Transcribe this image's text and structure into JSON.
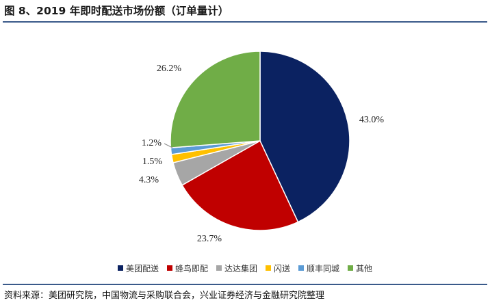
{
  "header": {
    "title": "图 8、2019 年即时配送市场份额（订单量计）"
  },
  "footer": {
    "source": "资料来源：美团研究院，中国物流与采购联合会，兴业证券经济与金融研究院整理"
  },
  "chart_data": {
    "type": "pie",
    "title": "",
    "start_angle_deg": 0,
    "direction": "clockwise",
    "legend_position": "bottom",
    "slices": [
      {
        "name": "美团配送",
        "value": 43.0,
        "label": "43.0%",
        "color": "#0b2261"
      },
      {
        "name": "蜂鸟即配",
        "value": 23.7,
        "label": "23.7%",
        "color": "#c00000"
      },
      {
        "name": "达达集团",
        "value": 4.3,
        "label": "4.3%",
        "color": "#a6a6a6"
      },
      {
        "name": "闪送",
        "value": 1.5,
        "label": "1.5%",
        "color": "#ffc000"
      },
      {
        "name": "顺丰同城",
        "value": 1.2,
        "label": "1.2%",
        "color": "#5b9bd5"
      },
      {
        "name": "其他",
        "value": 26.2,
        "label": "26.2%",
        "color": "#70ad47"
      }
    ]
  }
}
